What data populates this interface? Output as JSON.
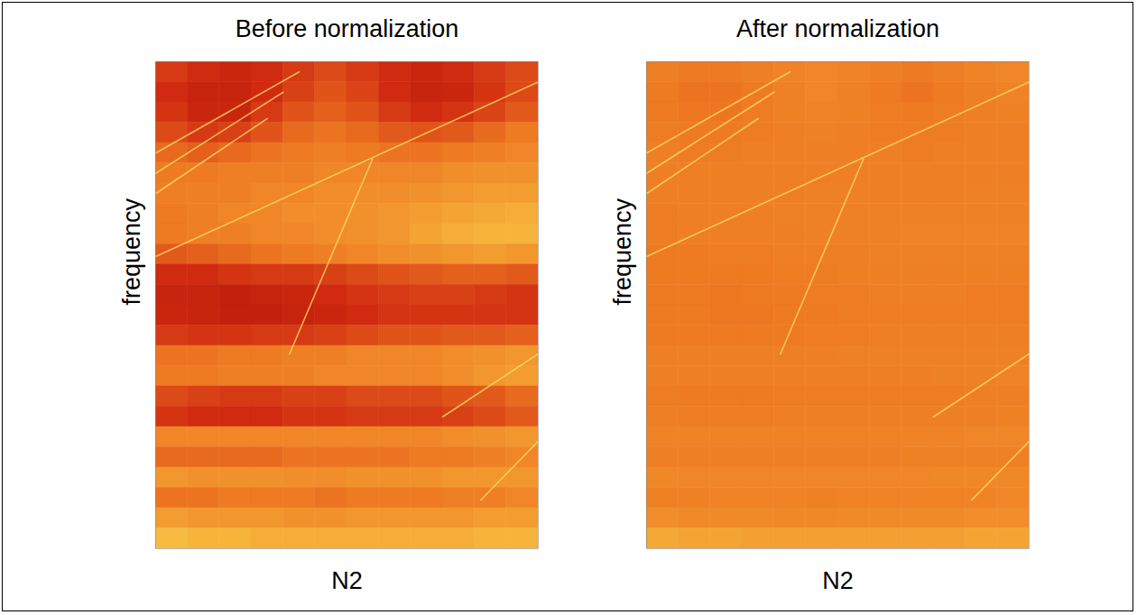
{
  "chart_data": [
    {
      "type": "heatmap",
      "title": "Before normalization",
      "x_label": "N2",
      "y_label": "frequency",
      "xlim": [
        0,
        12
      ],
      "ylim": [
        0,
        24
      ],
      "xticks": [],
      "yticks": [],
      "tick_labels": false,
      "zlim": [
        0,
        1
      ],
      "cells": [
        [
          0.3,
          0.25,
          0.22,
          0.25,
          0.3,
          0.35,
          0.3,
          0.25,
          0.22,
          0.25,
          0.3,
          0.35
        ],
        [
          0.25,
          0.2,
          0.2,
          0.25,
          0.32,
          0.38,
          0.33,
          0.25,
          0.2,
          0.22,
          0.28,
          0.35
        ],
        [
          0.28,
          0.22,
          0.22,
          0.3,
          0.38,
          0.42,
          0.38,
          0.3,
          0.25,
          0.28,
          0.33,
          0.4
        ],
        [
          0.35,
          0.3,
          0.32,
          0.38,
          0.45,
          0.48,
          0.45,
          0.4,
          0.38,
          0.4,
          0.45,
          0.5
        ],
        [
          0.45,
          0.42,
          0.45,
          0.48,
          0.5,
          0.52,
          0.5,
          0.48,
          0.48,
          0.5,
          0.52,
          0.55
        ],
        [
          0.5,
          0.5,
          0.52,
          0.52,
          0.52,
          0.55,
          0.55,
          0.55,
          0.55,
          0.58,
          0.6,
          0.6
        ],
        [
          0.52,
          0.52,
          0.52,
          0.55,
          0.55,
          0.58,
          0.58,
          0.58,
          0.6,
          0.62,
          0.65,
          0.65
        ],
        [
          0.5,
          0.52,
          0.55,
          0.55,
          0.58,
          0.58,
          0.6,
          0.62,
          0.65,
          0.68,
          0.7,
          0.72
        ],
        [
          0.5,
          0.52,
          0.52,
          0.55,
          0.55,
          0.58,
          0.6,
          0.62,
          0.68,
          0.72,
          0.75,
          0.75
        ],
        [
          0.4,
          0.42,
          0.45,
          0.48,
          0.5,
          0.52,
          0.55,
          0.58,
          0.6,
          0.62,
          0.65,
          0.62
        ],
        [
          0.25,
          0.25,
          0.28,
          0.3,
          0.3,
          0.32,
          0.35,
          0.38,
          0.4,
          0.42,
          0.42,
          0.4
        ],
        [
          0.2,
          0.2,
          0.18,
          0.2,
          0.22,
          0.25,
          0.28,
          0.3,
          0.32,
          0.32,
          0.3,
          0.28
        ],
        [
          0.22,
          0.2,
          0.18,
          0.18,
          0.2,
          0.22,
          0.25,
          0.28,
          0.28,
          0.28,
          0.28,
          0.28
        ],
        [
          0.3,
          0.28,
          0.28,
          0.3,
          0.3,
          0.32,
          0.35,
          0.38,
          0.38,
          0.4,
          0.4,
          0.42
        ],
        [
          0.48,
          0.48,
          0.5,
          0.5,
          0.52,
          0.52,
          0.55,
          0.55,
          0.55,
          0.58,
          0.6,
          0.62
        ],
        [
          0.5,
          0.5,
          0.52,
          0.52,
          0.52,
          0.55,
          0.55,
          0.55,
          0.55,
          0.58,
          0.62,
          0.65
        ],
        [
          0.35,
          0.32,
          0.3,
          0.3,
          0.32,
          0.32,
          0.35,
          0.35,
          0.35,
          0.38,
          0.4,
          0.45
        ],
        [
          0.28,
          0.25,
          0.25,
          0.25,
          0.28,
          0.28,
          0.3,
          0.3,
          0.3,
          0.32,
          0.35,
          0.4
        ],
        [
          0.55,
          0.55,
          0.55,
          0.55,
          0.55,
          0.55,
          0.55,
          0.55,
          0.55,
          0.58,
          0.6,
          0.62
        ],
        [
          0.45,
          0.45,
          0.45,
          0.45,
          0.48,
          0.48,
          0.48,
          0.48,
          0.5,
          0.5,
          0.52,
          0.55
        ],
        [
          0.62,
          0.6,
          0.6,
          0.6,
          0.58,
          0.58,
          0.6,
          0.6,
          0.6,
          0.62,
          0.62,
          0.62
        ],
        [
          0.48,
          0.48,
          0.5,
          0.5,
          0.5,
          0.48,
          0.5,
          0.5,
          0.5,
          0.52,
          0.52,
          0.55
        ],
        [
          0.65,
          0.62,
          0.62,
          0.62,
          0.6,
          0.6,
          0.62,
          0.62,
          0.62,
          0.62,
          0.65,
          0.65
        ],
        [
          0.78,
          0.75,
          0.75,
          0.72,
          0.72,
          0.72,
          0.72,
          0.72,
          0.72,
          0.72,
          0.75,
          0.75
        ]
      ],
      "traces": [
        {
          "color": "#ffe066",
          "x": [
            0,
            12
          ],
          "y": [
            14.4,
            23
          ]
        },
        {
          "color": "#ffe066",
          "x": [
            0,
            4.5
          ],
          "y": [
            19.5,
            23.5
          ]
        },
        {
          "color": "#ffe066",
          "x": [
            0,
            4
          ],
          "y": [
            18.5,
            22.5
          ]
        },
        {
          "color": "#ffe066",
          "x": [
            0,
            3.5
          ],
          "y": [
            17.5,
            21.2
          ]
        },
        {
          "color": "#ffe066",
          "x": [
            4.2,
            6.8
          ],
          "y": [
            9.6,
            19.2
          ]
        },
        {
          "color": "#ffe066",
          "x": [
            9,
            12
          ],
          "y": [
            6.5,
            9.6
          ]
        },
        {
          "color": "#ffe066",
          "x": [
            10.2,
            12
          ],
          "y": [
            2.4,
            5.3
          ]
        }
      ]
    },
    {
      "type": "heatmap",
      "title": "After normalization",
      "x_label": "N2",
      "y_label": "frequency",
      "xlim": [
        0,
        12
      ],
      "ylim": [
        0,
        24
      ],
      "xticks": [],
      "yticks": [],
      "tick_labels": false,
      "zlim": [
        0,
        1
      ],
      "cells": [
        [
          0.52,
          0.5,
          0.5,
          0.52,
          0.54,
          0.55,
          0.54,
          0.52,
          0.5,
          0.52,
          0.54,
          0.55
        ],
        [
          0.5,
          0.48,
          0.48,
          0.5,
          0.53,
          0.55,
          0.53,
          0.5,
          0.48,
          0.5,
          0.52,
          0.54
        ],
        [
          0.5,
          0.49,
          0.49,
          0.51,
          0.53,
          0.54,
          0.53,
          0.51,
          0.5,
          0.51,
          0.52,
          0.53
        ],
        [
          0.51,
          0.5,
          0.5,
          0.51,
          0.52,
          0.53,
          0.52,
          0.51,
          0.51,
          0.51,
          0.52,
          0.52
        ],
        [
          0.52,
          0.51,
          0.51,
          0.52,
          0.52,
          0.52,
          0.52,
          0.52,
          0.51,
          0.52,
          0.52,
          0.52
        ],
        [
          0.52,
          0.52,
          0.52,
          0.52,
          0.52,
          0.52,
          0.52,
          0.52,
          0.52,
          0.52,
          0.52,
          0.52
        ],
        [
          0.52,
          0.52,
          0.52,
          0.52,
          0.52,
          0.53,
          0.53,
          0.52,
          0.52,
          0.52,
          0.53,
          0.53
        ],
        [
          0.51,
          0.52,
          0.52,
          0.52,
          0.53,
          0.53,
          0.53,
          0.53,
          0.53,
          0.53,
          0.53,
          0.53
        ],
        [
          0.51,
          0.52,
          0.52,
          0.52,
          0.52,
          0.53,
          0.53,
          0.53,
          0.54,
          0.54,
          0.54,
          0.54
        ],
        [
          0.5,
          0.5,
          0.51,
          0.51,
          0.52,
          0.52,
          0.52,
          0.53,
          0.53,
          0.53,
          0.53,
          0.53
        ],
        [
          0.5,
          0.5,
          0.5,
          0.5,
          0.51,
          0.51,
          0.52,
          0.52,
          0.52,
          0.52,
          0.52,
          0.52
        ],
        [
          0.5,
          0.5,
          0.49,
          0.5,
          0.5,
          0.51,
          0.51,
          0.52,
          0.52,
          0.52,
          0.51,
          0.51
        ],
        [
          0.5,
          0.5,
          0.49,
          0.49,
          0.5,
          0.5,
          0.51,
          0.51,
          0.51,
          0.51,
          0.51,
          0.51
        ],
        [
          0.5,
          0.5,
          0.5,
          0.5,
          0.5,
          0.51,
          0.51,
          0.52,
          0.52,
          0.52,
          0.52,
          0.52
        ],
        [
          0.52,
          0.52,
          0.52,
          0.52,
          0.52,
          0.52,
          0.53,
          0.53,
          0.53,
          0.53,
          0.53,
          0.53
        ],
        [
          0.52,
          0.52,
          0.52,
          0.52,
          0.52,
          0.52,
          0.52,
          0.52,
          0.52,
          0.53,
          0.53,
          0.54
        ],
        [
          0.51,
          0.5,
          0.5,
          0.5,
          0.51,
          0.51,
          0.51,
          0.51,
          0.51,
          0.51,
          0.52,
          0.52
        ],
        [
          0.52,
          0.51,
          0.51,
          0.51,
          0.52,
          0.52,
          0.52,
          0.52,
          0.52,
          0.52,
          0.52,
          0.53
        ],
        [
          0.54,
          0.54,
          0.54,
          0.54,
          0.54,
          0.54,
          0.54,
          0.54,
          0.54,
          0.54,
          0.55,
          0.55
        ],
        [
          0.52,
          0.52,
          0.52,
          0.52,
          0.52,
          0.52,
          0.52,
          0.52,
          0.53,
          0.53,
          0.53,
          0.53
        ],
        [
          0.56,
          0.55,
          0.55,
          0.55,
          0.55,
          0.55,
          0.55,
          0.55,
          0.55,
          0.56,
          0.56,
          0.56
        ],
        [
          0.53,
          0.53,
          0.54,
          0.54,
          0.54,
          0.53,
          0.54,
          0.54,
          0.54,
          0.54,
          0.54,
          0.55
        ],
        [
          0.58,
          0.57,
          0.57,
          0.57,
          0.56,
          0.56,
          0.57,
          0.57,
          0.57,
          0.57,
          0.58,
          0.58
        ],
        [
          0.7,
          0.68,
          0.68,
          0.66,
          0.66,
          0.66,
          0.66,
          0.66,
          0.66,
          0.66,
          0.68,
          0.68
        ]
      ],
      "traces": [
        {
          "color": "#ffe066",
          "x": [
            0,
            12
          ],
          "y": [
            14.4,
            23
          ]
        },
        {
          "color": "#ffe066",
          "x": [
            0,
            4.5
          ],
          "y": [
            19.5,
            23.5
          ]
        },
        {
          "color": "#ffe066",
          "x": [
            0,
            4
          ],
          "y": [
            18.5,
            22.5
          ]
        },
        {
          "color": "#ffe066",
          "x": [
            0,
            3.5
          ],
          "y": [
            17.5,
            21.2
          ]
        },
        {
          "color": "#ffe066",
          "x": [
            4.2,
            6.8
          ],
          "y": [
            9.6,
            19.2
          ]
        },
        {
          "color": "#ffe066",
          "x": [
            9,
            12
          ],
          "y": [
            6.5,
            9.6
          ]
        },
        {
          "color": "#ffe066",
          "x": [
            10.2,
            12
          ],
          "y": [
            2.4,
            5.3
          ]
        }
      ]
    }
  ]
}
